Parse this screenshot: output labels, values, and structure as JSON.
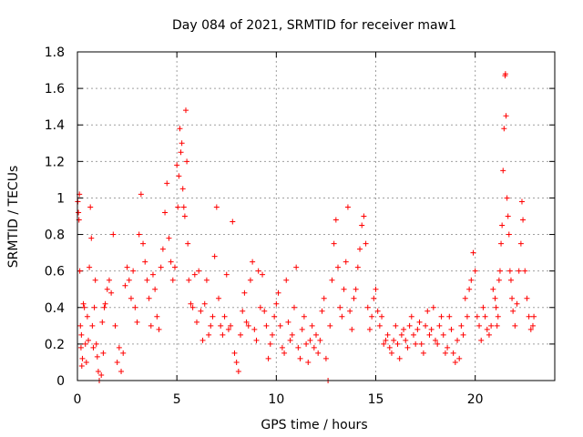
{
  "chart_data": {
    "type": "scatter",
    "title": "Day 084 of 2021, SRMTID for receiver maw1",
    "xlabel": "GPS time / hours",
    "ylabel": "SRMTID / TECUs",
    "xlim": [
      0,
      24
    ],
    "ylim": [
      0,
      1.8
    ],
    "xticks": [
      0,
      5,
      10,
      15,
      20
    ],
    "xtick_labels": [
      "0",
      "5",
      "10",
      "15",
      "20"
    ],
    "yticks": [
      0,
      0.2,
      0.4,
      0.6,
      0.8,
      1.0,
      1.2,
      1.4,
      1.6,
      1.8
    ],
    "ytick_labels": [
      "0",
      "0.2",
      "0.4",
      "0.6",
      "0.8",
      "1",
      "1.2",
      "1.4",
      "1.6",
      "1.8"
    ],
    "grid": true,
    "marker": "+",
    "series": [
      {
        "name": "SRMTID",
        "color": "#ff0000",
        "points": [
          [
            0.02,
            0.98
          ],
          [
            0.05,
            0.92
          ],
          [
            0.08,
            0.88
          ],
          [
            0.1,
            1.02
          ],
          [
            0.12,
            0.6
          ],
          [
            0.15,
            0.3
          ],
          [
            0.18,
            0.18
          ],
          [
            0.2,
            0.25
          ],
          [
            0.22,
            0.08
          ],
          [
            0.25,
            0.12
          ],
          [
            0.3,
            0.42
          ],
          [
            0.35,
            0.4
          ],
          [
            0.4,
            0.2
          ],
          [
            0.45,
            0.1
          ],
          [
            0.5,
            0.35
          ],
          [
            0.55,
            0.22
          ],
          [
            0.6,
            0.62
          ],
          [
            0.65,
            0.95
          ],
          [
            0.7,
            0.78
          ],
          [
            0.75,
            0.3
          ],
          [
            0.8,
            0.18
          ],
          [
            0.85,
            0.4
          ],
          [
            0.9,
            0.55
          ],
          [
            0.95,
            0.2
          ],
          [
            1.0,
            0.13
          ],
          [
            1.05,
            0.05
          ],
          [
            1.1,
            0.0
          ],
          [
            1.2,
            0.03
          ],
          [
            1.25,
            0.32
          ],
          [
            1.3,
            0.15
          ],
          [
            1.35,
            0.4
          ],
          [
            1.4,
            0.42
          ],
          [
            1.5,
            0.5
          ],
          [
            1.6,
            0.55
          ],
          [
            1.7,
            0.48
          ],
          [
            1.8,
            0.8
          ],
          [
            1.9,
            0.3
          ],
          [
            2.0,
            0.1
          ],
          [
            2.1,
            0.18
          ],
          [
            2.2,
            0.05
          ],
          [
            2.3,
            0.15
          ],
          [
            2.4,
            0.52
          ],
          [
            2.5,
            0.62
          ],
          [
            2.6,
            0.55
          ],
          [
            2.7,
            0.45
          ],
          [
            2.8,
            0.6
          ],
          [
            2.9,
            0.4
          ],
          [
            3.0,
            0.32
          ],
          [
            3.1,
            0.8
          ],
          [
            3.2,
            1.02
          ],
          [
            3.3,
            0.75
          ],
          [
            3.4,
            0.65
          ],
          [
            3.5,
            0.55
          ],
          [
            3.6,
            0.45
          ],
          [
            3.7,
            0.3
          ],
          [
            3.8,
            0.58
          ],
          [
            3.9,
            0.5
          ],
          [
            4.0,
            0.35
          ],
          [
            4.1,
            0.28
          ],
          [
            4.2,
            0.62
          ],
          [
            4.3,
            0.72
          ],
          [
            4.4,
            0.92
          ],
          [
            4.5,
            1.08
          ],
          [
            4.6,
            0.78
          ],
          [
            4.7,
            0.65
          ],
          [
            4.8,
            0.55
          ],
          [
            4.9,
            0.62
          ],
          [
            5.0,
            1.18
          ],
          [
            5.05,
            0.95
          ],
          [
            5.1,
            1.12
          ],
          [
            5.15,
            1.38
          ],
          [
            5.2,
            1.25
          ],
          [
            5.25,
            1.3
          ],
          [
            5.3,
            1.05
          ],
          [
            5.35,
            0.95
          ],
          [
            5.4,
            0.9
          ],
          [
            5.45,
            1.48
          ],
          [
            5.5,
            1.2
          ],
          [
            5.55,
            0.75
          ],
          [
            5.6,
            0.55
          ],
          [
            5.7,
            0.42
          ],
          [
            5.8,
            0.4
          ],
          [
            5.9,
            0.58
          ],
          [
            6.0,
            0.32
          ],
          [
            6.1,
            0.6
          ],
          [
            6.2,
            0.38
          ],
          [
            6.3,
            0.22
          ],
          [
            6.4,
            0.42
          ],
          [
            6.5,
            0.55
          ],
          [
            6.6,
            0.25
          ],
          [
            6.7,
            0.3
          ],
          [
            6.8,
            0.35
          ],
          [
            6.9,
            0.68
          ],
          [
            7.0,
            0.95
          ],
          [
            7.1,
            0.45
          ],
          [
            7.2,
            0.3
          ],
          [
            7.3,
            0.25
          ],
          [
            7.4,
            0.35
          ],
          [
            7.5,
            0.58
          ],
          [
            7.6,
            0.28
          ],
          [
            7.7,
            0.3
          ],
          [
            7.8,
            0.87
          ],
          [
            7.9,
            0.15
          ],
          [
            8.0,
            0.1
          ],
          [
            8.1,
            0.05
          ],
          [
            8.2,
            0.25
          ],
          [
            8.3,
            0.38
          ],
          [
            8.4,
            0.48
          ],
          [
            8.5,
            0.32
          ],
          [
            8.6,
            0.3
          ],
          [
            8.7,
            0.55
          ],
          [
            8.8,
            0.65
          ],
          [
            8.9,
            0.28
          ],
          [
            9.0,
            0.22
          ],
          [
            9.1,
            0.6
          ],
          [
            9.2,
            0.4
          ],
          [
            9.3,
            0.58
          ],
          [
            9.4,
            0.38
          ],
          [
            9.5,
            0.3
          ],
          [
            9.6,
            0.12
          ],
          [
            9.7,
            0.2
          ],
          [
            9.8,
            0.25
          ],
          [
            9.9,
            0.35
          ],
          [
            10.0,
            0.42
          ],
          [
            10.1,
            0.48
          ],
          [
            10.2,
            0.3
          ],
          [
            10.3,
            0.18
          ],
          [
            10.4,
            0.15
          ],
          [
            10.5,
            0.55
          ],
          [
            10.6,
            0.32
          ],
          [
            10.7,
            0.22
          ],
          [
            10.8,
            0.25
          ],
          [
            10.9,
            0.4
          ],
          [
            11.0,
            0.62
          ],
          [
            11.1,
            0.18
          ],
          [
            11.2,
            0.12
          ],
          [
            11.3,
            0.28
          ],
          [
            11.4,
            0.35
          ],
          [
            11.5,
            0.2
          ],
          [
            11.6,
            0.1
          ],
          [
            11.7,
            0.22
          ],
          [
            11.8,
            0.3
          ],
          [
            11.9,
            0.18
          ],
          [
            12.0,
            0.25
          ],
          [
            12.1,
            0.15
          ],
          [
            12.2,
            0.22
          ],
          [
            12.3,
            0.38
          ],
          [
            12.4,
            0.45
          ],
          [
            12.5,
            0.12
          ],
          [
            12.6,
            0.0
          ],
          [
            12.7,
            0.3
          ],
          [
            12.8,
            0.55
          ],
          [
            12.9,
            0.75
          ],
          [
            13.0,
            0.88
          ],
          [
            13.1,
            0.62
          ],
          [
            13.2,
            0.4
          ],
          [
            13.3,
            0.35
          ],
          [
            13.4,
            0.5
          ],
          [
            13.5,
            0.65
          ],
          [
            13.6,
            0.95
          ],
          [
            13.7,
            0.38
          ],
          [
            13.8,
            0.28
          ],
          [
            13.9,
            0.45
          ],
          [
            14.0,
            0.5
          ],
          [
            14.1,
            0.62
          ],
          [
            14.2,
            0.72
          ],
          [
            14.3,
            0.85
          ],
          [
            14.4,
            0.9
          ],
          [
            14.5,
            0.75
          ],
          [
            14.6,
            0.4
          ],
          [
            14.7,
            0.28
          ],
          [
            14.8,
            0.35
          ],
          [
            14.9,
            0.45
          ],
          [
            15.0,
            0.5
          ],
          [
            15.1,
            0.38
          ],
          [
            15.2,
            0.3
          ],
          [
            15.3,
            0.35
          ],
          [
            15.4,
            0.2
          ],
          [
            15.5,
            0.22
          ],
          [
            15.6,
            0.25
          ],
          [
            15.7,
            0.18
          ],
          [
            15.8,
            0.15
          ],
          [
            15.9,
            0.22
          ],
          [
            16.0,
            0.3
          ],
          [
            16.1,
            0.2
          ],
          [
            16.2,
            0.12
          ],
          [
            16.3,
            0.25
          ],
          [
            16.4,
            0.28
          ],
          [
            16.5,
            0.22
          ],
          [
            16.6,
            0.18
          ],
          [
            16.7,
            0.3
          ],
          [
            16.8,
            0.35
          ],
          [
            16.9,
            0.25
          ],
          [
            17.0,
            0.2
          ],
          [
            17.1,
            0.28
          ],
          [
            17.2,
            0.32
          ],
          [
            17.3,
            0.2
          ],
          [
            17.4,
            0.15
          ],
          [
            17.5,
            0.3
          ],
          [
            17.6,
            0.38
          ],
          [
            17.7,
            0.25
          ],
          [
            17.8,
            0.28
          ],
          [
            17.9,
            0.4
          ],
          [
            18.0,
            0.22
          ],
          [
            18.1,
            0.2
          ],
          [
            18.2,
            0.3
          ],
          [
            18.3,
            0.35
          ],
          [
            18.4,
            0.25
          ],
          [
            18.5,
            0.15
          ],
          [
            18.6,
            0.18
          ],
          [
            18.7,
            0.35
          ],
          [
            18.8,
            0.28
          ],
          [
            18.9,
            0.15
          ],
          [
            19.0,
            0.1
          ],
          [
            19.1,
            0.22
          ],
          [
            19.2,
            0.12
          ],
          [
            19.3,
            0.3
          ],
          [
            19.4,
            0.25
          ],
          [
            19.5,
            0.45
          ],
          [
            19.6,
            0.35
          ],
          [
            19.7,
            0.5
          ],
          [
            19.8,
            0.55
          ],
          [
            19.9,
            0.7
          ],
          [
            20.0,
            0.6
          ],
          [
            20.1,
            0.35
          ],
          [
            20.2,
            0.3
          ],
          [
            20.3,
            0.22
          ],
          [
            20.4,
            0.4
          ],
          [
            20.5,
            0.35
          ],
          [
            20.6,
            0.28
          ],
          [
            20.7,
            0.25
          ],
          [
            20.8,
            0.3
          ],
          [
            20.9,
            0.5
          ],
          [
            21.0,
            0.45
          ],
          [
            21.05,
            0.4
          ],
          [
            21.1,
            0.3
          ],
          [
            21.15,
            0.35
          ],
          [
            21.2,
            0.55
          ],
          [
            21.25,
            0.6
          ],
          [
            21.3,
            0.75
          ],
          [
            21.35,
            0.85
          ],
          [
            21.4,
            1.15
          ],
          [
            21.45,
            1.38
          ],
          [
            21.5,
            1.67
          ],
          [
            21.52,
            1.68
          ],
          [
            21.55,
            1.45
          ],
          [
            21.6,
            1.0
          ],
          [
            21.65,
            0.9
          ],
          [
            21.7,
            0.8
          ],
          [
            21.75,
            0.6
          ],
          [
            21.8,
            0.55
          ],
          [
            21.85,
            0.45
          ],
          [
            21.9,
            0.38
          ],
          [
            22.0,
            0.3
          ],
          [
            22.1,
            0.42
          ],
          [
            22.2,
            0.6
          ],
          [
            22.3,
            0.75
          ],
          [
            22.35,
            0.98
          ],
          [
            22.4,
            0.88
          ],
          [
            22.5,
            0.6
          ],
          [
            22.6,
            0.45
          ],
          [
            22.7,
            0.35
          ],
          [
            22.8,
            0.28
          ],
          [
            22.9,
            0.3
          ],
          [
            22.95,
            0.35
          ]
        ]
      }
    ]
  }
}
